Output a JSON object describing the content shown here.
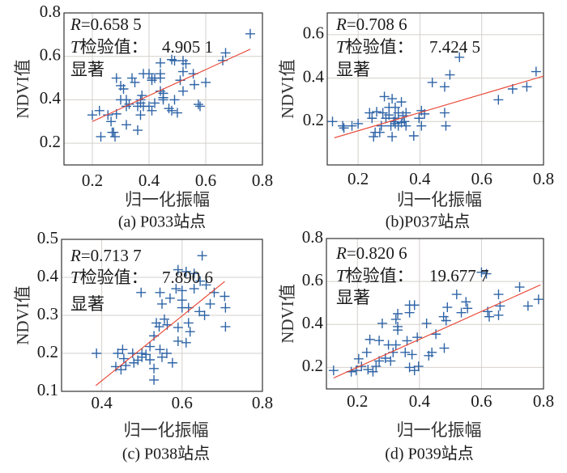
{
  "colors": {
    "marker": "#2f64a6",
    "fit_line": "#e8412f",
    "grid": "#d4d0cc",
    "axes": "#333333"
  },
  "chart_data": [
    {
      "type": "scatter",
      "caption": "(a) P033站点",
      "xlabel": "归一化振幅",
      "ylabel": "NDVI值",
      "xlim": [
        0.1,
        0.8
      ],
      "ylim": [
        0.1,
        0.8
      ],
      "xticks": [
        "0.2",
        "0.4",
        "0.6",
        "0.8"
      ],
      "yticks": [
        "0.2",
        "0.4",
        "0.6",
        "0.8"
      ],
      "grid": true,
      "annotation": {
        "r_symbol": "R",
        "r_value": "=0.658 5",
        "t_symbol": "T",
        "t_label": "检验值：",
        "t_value": "4.905 1",
        "significance": "显著"
      },
      "fit_line": {
        "x": [
          0.2,
          0.757
        ],
        "y": [
          0.3,
          0.633
        ]
      },
      "points": {
        "x": [
          0.757,
          0.67,
          0.66,
          0.6,
          0.56,
          0.556,
          0.574,
          0.58,
          0.53,
          0.52,
          0.52,
          0.51,
          0.52,
          0.48,
          0.49,
          0.44,
          0.44,
          0.44,
          0.42,
          0.41,
          0.4,
          0.38,
          0.41,
          0.44,
          0.45,
          0.45,
          0.45,
          0.49,
          0.47,
          0.48,
          0.5,
          0.42,
          0.41,
          0.4,
          0.38,
          0.37,
          0.375,
          0.37,
          0.36,
          0.37,
          0.36,
          0.34,
          0.35,
          0.32,
          0.33,
          0.32,
          0.31,
          0.3,
          0.285,
          0.3,
          0.32,
          0.255,
          0.266,
          0.285,
          0.27,
          0.275,
          0.28,
          0.23,
          0.225,
          0.2
        ],
        "y": [
          0.704,
          0.616,
          0.581,
          0.48,
          0.47,
          0.52,
          0.379,
          0.37,
          0.566,
          0.58,
          0.53,
          0.49,
          0.44,
          0.585,
          0.58,
          0.57,
          0.52,
          0.5,
          0.5,
          0.5,
          0.52,
          0.52,
          0.49,
          0.44,
          0.43,
          0.41,
          0.4,
          0.4,
          0.36,
          0.35,
          0.34,
          0.385,
          0.35,
          0.37,
          0.37,
          0.385,
          0.42,
          0.4,
          0.37,
          0.33,
          0.26,
          0.5,
          0.48,
          0.37,
          0.38,
          0.4,
          0.45,
          0.465,
          0.5,
          0.4,
          0.285,
          0.33,
          0.3,
          0.335,
          0.25,
          0.25,
          0.23,
          0.23,
          0.35,
          0.33
        ]
      }
    },
    {
      "type": "scatter",
      "caption": "(b)P037站点",
      "xlabel": "归一化振幅",
      "ylabel": "NDVI值",
      "xlim": [
        0.1,
        0.8
      ],
      "ylim": [
        0.0,
        0.7
      ],
      "xticks": [
        "0.2",
        "0.4",
        "0.6",
        "0.8"
      ],
      "yticks": [
        "0.2",
        "0.4",
        "0.6"
      ],
      "grid": true,
      "annotation": {
        "r_symbol": "R",
        "r_value": "=0.708 6",
        "t_symbol": "T",
        "t_label": "检验值：",
        "t_value": "7.424 5",
        "significance": "显著"
      },
      "fit_line": {
        "x": [
          0.123,
          0.8
        ],
        "y": [
          0.125,
          0.409
        ]
      },
      "points": {
        "x": [
          0.117,
          0.154,
          0.15,
          0.18,
          0.2,
          0.237,
          0.245,
          0.26,
          0.255,
          0.25,
          0.27,
          0.275,
          0.285,
          0.29,
          0.28,
          0.3,
          0.31,
          0.31,
          0.32,
          0.32,
          0.33,
          0.34,
          0.34,
          0.345,
          0.355,
          0.355,
          0.38,
          0.397,
          0.405,
          0.415,
          0.405,
          0.44,
          0.48,
          0.484,
          0.48,
          0.497,
          0.528,
          0.654,
          0.7,
          0.746,
          0.776,
          0.306,
          0.315,
          0.33,
          0.35,
          0.32,
          0.3
        ],
        "y": [
          0.2,
          0.17,
          0.18,
          0.18,
          0.19,
          0.24,
          0.215,
          0.245,
          0.15,
          0.13,
          0.15,
          0.18,
          0.315,
          0.215,
          0.24,
          0.265,
          0.305,
          0.13,
          0.19,
          0.215,
          0.24,
          0.195,
          0.29,
          0.227,
          0.18,
          0.24,
          0.134,
          0.215,
          0.25,
          0.235,
          0.18,
          0.38,
          0.24,
          0.18,
          0.36,
          0.415,
          0.496,
          0.3,
          0.35,
          0.36,
          0.43,
          0.18,
          0.2,
          0.18,
          0.2,
          0.265,
          0.23
        ]
      }
    },
    {
      "type": "scatter",
      "caption": "(c) P038站点",
      "xlabel": "归一化振幅",
      "ylabel": "NDVI值",
      "xlim": [
        0.3,
        0.8
      ],
      "ylim": [
        0.1,
        0.5
      ],
      "xticks": [
        "0.4",
        "0.6",
        "0.8"
      ],
      "yticks": [
        "0.1",
        "0.2",
        "0.3",
        "0.4",
        "0.5"
      ],
      "grid": true,
      "annotation": {
        "r_symbol": "R",
        "r_value": "=0.713 7",
        "t_symbol": "T",
        "t_label": "检验值：",
        "t_value": "7.890 6",
        "significance": "显著"
      },
      "fit_line": {
        "x": [
          0.385,
          0.706
        ],
        "y": [
          0.115,
          0.389
        ]
      },
      "points": {
        "x": [
          0.387,
          0.65,
          0.59,
          0.61,
          0.63,
          0.645,
          0.66,
          0.63,
          0.6,
          0.585,
          0.57,
          0.545,
          0.55,
          0.6,
          0.6,
          0.616,
          0.643,
          0.656,
          0.67,
          0.68,
          0.706,
          0.708,
          0.708,
          0.498,
          0.556,
          0.536,
          0.543,
          0.563,
          0.59,
          0.616,
          0.62,
          0.59,
          0.61,
          0.53,
          0.52,
          0.545,
          0.562,
          0.576,
          0.55,
          0.52,
          0.51,
          0.5,
          0.477,
          0.455,
          0.452,
          0.44,
          0.435,
          0.448,
          0.46,
          0.49,
          0.5,
          0.53,
          0.53,
          0.48
        ],
        "y": [
          0.2,
          0.457,
          0.42,
          0.415,
          0.41,
          0.39,
          0.38,
          0.37,
          0.365,
          0.37,
          0.345,
          0.36,
          0.33,
          0.34,
          0.32,
          0.32,
          0.31,
          0.3,
          0.33,
          0.36,
          0.35,
          0.32,
          0.27,
          0.36,
          0.29,
          0.28,
          0.27,
          0.275,
          0.268,
          0.28,
          0.257,
          0.232,
          0.228,
          0.246,
          0.218,
          0.21,
          0.2,
          0.175,
          0.19,
          0.183,
          0.197,
          0.2,
          0.2,
          0.186,
          0.21,
          0.2,
          0.165,
          0.157,
          0.168,
          0.182,
          0.19,
          0.16,
          0.13,
          0.175
        ]
      }
    },
    {
      "type": "scatter",
      "caption": "(d)  P039站点",
      "xlabel": "归一化振幅",
      "ylabel": "NDVI值",
      "xlim": [
        0.1,
        0.8
      ],
      "ylim": [
        0.1,
        0.8
      ],
      "xticks": [
        "0.2",
        "0.4",
        "0.6",
        "0.8"
      ],
      "yticks": [
        "0.2",
        "0.4",
        "0.6",
        "0.8"
      ],
      "grid": true,
      "annotation": {
        "r_symbol": "R",
        "r_value": "=0.820 6",
        "t_symbol": "T",
        "t_label": "检验值：",
        "t_value": "19.677 7",
        "significance": "显著"
      },
      "fit_line": {
        "x": [
          0.123,
          0.79
        ],
        "y": [
          0.151,
          0.584
        ]
      },
      "points": {
        "x": [
          0.123,
          0.18,
          0.196,
          0.204,
          0.213,
          0.23,
          0.24,
          0.234,
          0.25,
          0.26,
          0.27,
          0.28,
          0.27,
          0.29,
          0.3,
          0.307,
          0.315,
          0.324,
          0.33,
          0.33,
          0.324,
          0.33,
          0.36,
          0.354,
          0.368,
          0.384,
          0.368,
          0.376,
          0.368,
          0.384,
          0.397,
          0.393,
          0.423,
          0.43,
          0.44,
          0.453,
          0.48,
          0.478,
          0.49,
          0.486,
          0.52,
          0.535,
          0.55,
          0.555,
          0.6,
          0.616,
          0.62,
          0.625,
          0.655,
          0.655,
          0.66,
          0.723,
          0.75,
          0.784
        ],
        "y": [
          0.186,
          0.18,
          0.186,
          0.24,
          0.205,
          0.27,
          0.33,
          0.19,
          0.18,
          0.205,
          0.325,
          0.405,
          0.23,
          0.243,
          0.305,
          0.23,
          0.27,
          0.305,
          0.39,
          0.45,
          0.424,
          0.374,
          0.324,
          0.27,
          0.49,
          0.49,
          0.455,
          0.26,
          0.2,
          0.186,
          0.205,
          0.34,
          0.405,
          0.255,
          0.27,
          0.355,
          0.29,
          0.436,
          0.48,
          0.418,
          0.54,
          0.455,
          0.505,
          0.475,
          0.643,
          0.636,
          0.46,
          0.436,
          0.443,
          0.54,
          0.486,
          0.574,
          0.486,
          0.517
        ]
      }
    }
  ]
}
